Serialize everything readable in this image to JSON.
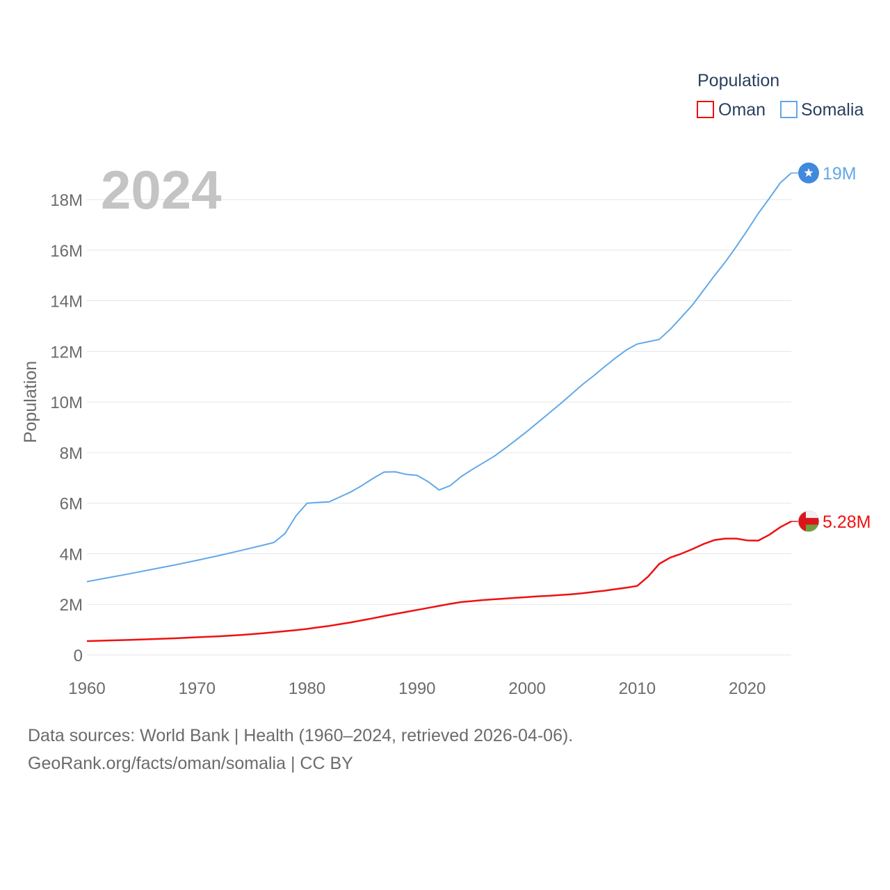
{
  "chart_data": {
    "type": "line",
    "title": "2024",
    "xlabel": "",
    "ylabel": "Population",
    "xlim": [
      1960,
      2024
    ],
    "ylim": [
      0,
      19000000
    ],
    "x_ticks": [
      1960,
      1970,
      1980,
      1990,
      2000,
      2010,
      2020
    ],
    "x_tick_labels": [
      "1960",
      "1970",
      "1980",
      "1990",
      "2000",
      "2010",
      "2020"
    ],
    "y_ticks": [
      0,
      2000000,
      4000000,
      6000000,
      8000000,
      10000000,
      12000000,
      14000000,
      16000000,
      18000000
    ],
    "y_tick_labels": [
      "0",
      "2M",
      "4M",
      "6M",
      "8M",
      "10M",
      "12M",
      "14M",
      "16M",
      "18M"
    ],
    "legend_title": "Population",
    "legend_position": "top-right",
    "grid": true,
    "x": [
      1960,
      1962,
      1964,
      1966,
      1968,
      1970,
      1972,
      1974,
      1976,
      1977,
      1978,
      1979,
      1980,
      1981,
      1982,
      1983,
      1984,
      1985,
      1986,
      1987,
      1988,
      1989,
      1990,
      1991,
      1992,
      1993,
      1994,
      1995,
      1996,
      1997,
      1998,
      1999,
      2000,
      2001,
      2002,
      2003,
      2004,
      2005,
      2006,
      2007,
      2008,
      2009,
      2010,
      2011,
      2012,
      2013,
      2014,
      2015,
      2016,
      2017,
      2018,
      2019,
      2020,
      2021,
      2022,
      2023,
      2024
    ],
    "series": [
      {
        "name": "Oman",
        "color": "#ee1111",
        "end_label": "5.28M",
        "flag": "oman-flag-icon",
        "values": [
          550000,
          575000,
          600000,
          630000,
          660000,
          700000,
          740000,
          790000,
          860000,
          900000,
          940000,
          985000,
          1030000,
          1090000,
          1150000,
          1220000,
          1290000,
          1370000,
          1450000,
          1540000,
          1620000,
          1700000,
          1780000,
          1860000,
          1940000,
          2020000,
          2090000,
          2130000,
          2170000,
          2200000,
          2230000,
          2260000,
          2290000,
          2320000,
          2340000,
          2370000,
          2400000,
          2440000,
          2490000,
          2540000,
          2600000,
          2660000,
          2730000,
          3100000,
          3600000,
          3850000,
          4000000,
          4180000,
          4380000,
          4540000,
          4600000,
          4600000,
          4530000,
          4520000,
          4750000,
          5050000,
          5280000
        ]
      },
      {
        "name": "Somalia",
        "color": "#62a8e8",
        "end_label": "19M",
        "flag": "somalia-flag-icon",
        "values": [
          2900000,
          3060000,
          3220000,
          3390000,
          3560000,
          3740000,
          3930000,
          4130000,
          4340000,
          4450000,
          4800000,
          5500000,
          6000000,
          6030000,
          6050000,
          6250000,
          6450000,
          6700000,
          6980000,
          7230000,
          7240000,
          7140000,
          7100000,
          6850000,
          6520000,
          6690000,
          7050000,
          7330000,
          7590000,
          7850000,
          8170000,
          8500000,
          8840000,
          9200000,
          9560000,
          9920000,
          10300000,
          10680000,
          11020000,
          11380000,
          11730000,
          12050000,
          12290000,
          12380000,
          12470000,
          12870000,
          13340000,
          13820000,
          14400000,
          14980000,
          15530000,
          16140000,
          16780000,
          17450000,
          18040000,
          18660000,
          19050000
        ]
      }
    ]
  },
  "footer": {
    "line1": "Data sources: World Bank | Health (1960–2024, retrieved 2026-04-06).",
    "line2": "GeoRank.org/facts/oman/somalia | CC BY"
  }
}
